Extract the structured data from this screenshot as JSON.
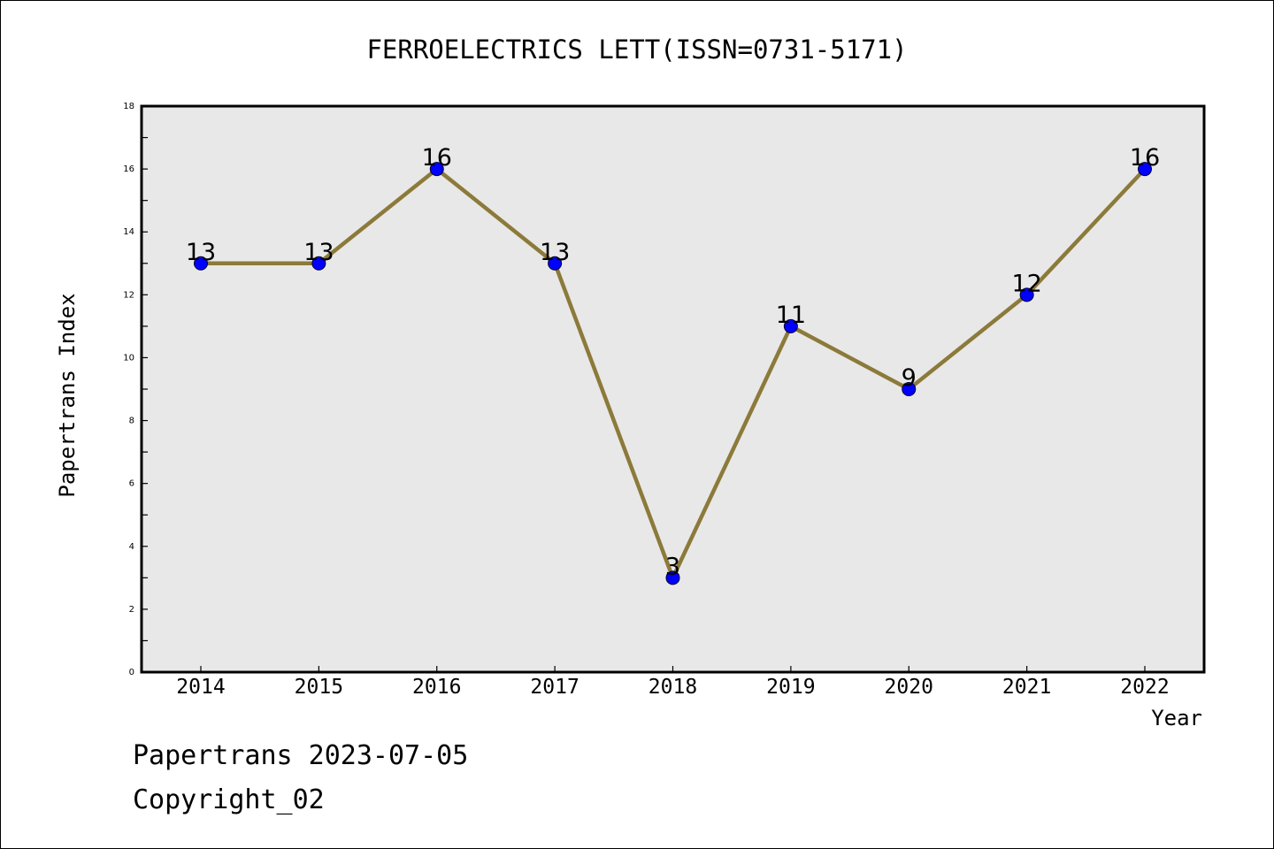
{
  "chart_data": {
    "type": "line",
    "title": "FERROELECTRICS LETT(ISSN=0731-5171)",
    "xlabel": "Year",
    "ylabel": "Papertrans Index",
    "categories": [
      "2014",
      "2015",
      "2016",
      "2017",
      "2018",
      "2019",
      "2020",
      "2021",
      "2022"
    ],
    "series": [
      {
        "values": [
          13,
          13,
          16,
          13,
          3,
          11,
          9,
          12,
          16
        ]
      }
    ],
    "data_labels": [
      "13",
      "13",
      "16",
      "13",
      "3",
      "11",
      "9",
      "12",
      "16"
    ],
    "ylim": [
      0,
      18
    ],
    "y_ticks": [
      "0",
      "2",
      "4",
      "6",
      "8",
      "10",
      "12",
      "14",
      "16",
      "18"
    ],
    "grid": false,
    "colors": {
      "line": "#8c7a3a",
      "marker": "#0000ff",
      "plot_bg": "#e8e8e8"
    }
  },
  "footer": {
    "credit": "Papertrans 2023-07-05",
    "copyright": "Copyright_02"
  }
}
